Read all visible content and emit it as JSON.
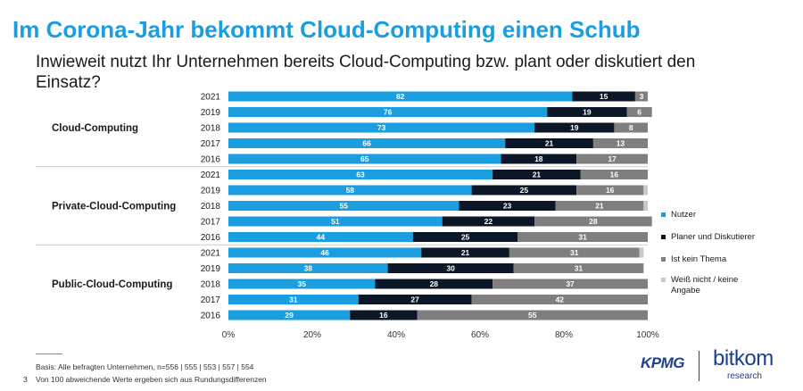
{
  "header": {
    "title": "Im Corona-Jahr bekommt Cloud-Computing einen Schub",
    "subtitle": "Inwieweit nutzt Ihr Unternehmen bereits Cloud-Computing bzw. plant oder diskutiert den Einsatz?"
  },
  "footer": {
    "basis": "Basis: Alle befragten Unternehmen, n=556 | 555 | 553 | 557 | 554",
    "note": "Von 100 abweichende Werte ergeben sich aus Rundungsdifferenzen",
    "page_number": "3"
  },
  "logos": {
    "kpmg": "KPMG",
    "bitkom": "bitkom",
    "research": "research"
  },
  "chart_data": {
    "type": "bar",
    "orientation": "horizontal",
    "stacked": true,
    "xlim": [
      0,
      100
    ],
    "x_ticks": [
      "0%",
      "20%",
      "40%",
      "60%",
      "80%",
      "100%"
    ],
    "legend_position": "right",
    "series": [
      {
        "name": "Nutzer",
        "color": "#1a9ee0"
      },
      {
        "name": "Planer und Diskutierer",
        "color": "#0b1726"
      },
      {
        "name": "Ist kein Thema",
        "color": "#7f7f7f"
      },
      {
        "name": "Weiß nicht / keine Angabe",
        "color": "#c9c9c9"
      }
    ],
    "groups": [
      {
        "label": "Cloud-Computing",
        "rows": [
          {
            "year": "2021",
            "values": [
              82,
              15,
              3,
              0
            ]
          },
          {
            "year": "2019",
            "values": [
              76,
              19,
              6,
              0
            ]
          },
          {
            "year": "2018",
            "values": [
              73,
              19,
              8,
              0
            ]
          },
          {
            "year": "2017",
            "values": [
              66,
              21,
              13,
              0
            ]
          },
          {
            "year": "2016",
            "values": [
              65,
              18,
              17,
              0
            ]
          }
        ]
      },
      {
        "label": "Private-Cloud-Computing",
        "rows": [
          {
            "year": "2021",
            "values": [
              63,
              21,
              16,
              0
            ]
          },
          {
            "year": "2019",
            "values": [
              58,
              25,
              16,
              1
            ]
          },
          {
            "year": "2018",
            "values": [
              55,
              23,
              21,
              1
            ]
          },
          {
            "year": "2017",
            "values": [
              51,
              22,
              28,
              0
            ]
          },
          {
            "year": "2016",
            "values": [
              44,
              25,
              31,
              0
            ]
          }
        ]
      },
      {
        "label": "Public-Cloud-Computing",
        "rows": [
          {
            "year": "2021",
            "values": [
              46,
              21,
              31,
              1
            ]
          },
          {
            "year": "2019",
            "values": [
              38,
              30,
              31,
              0
            ]
          },
          {
            "year": "2018",
            "values": [
              35,
              28,
              37,
              0
            ]
          },
          {
            "year": "2017",
            "values": [
              31,
              27,
              42,
              0
            ]
          },
          {
            "year": "2016",
            "values": [
              29,
              16,
              55,
              0
            ]
          }
        ]
      }
    ]
  }
}
